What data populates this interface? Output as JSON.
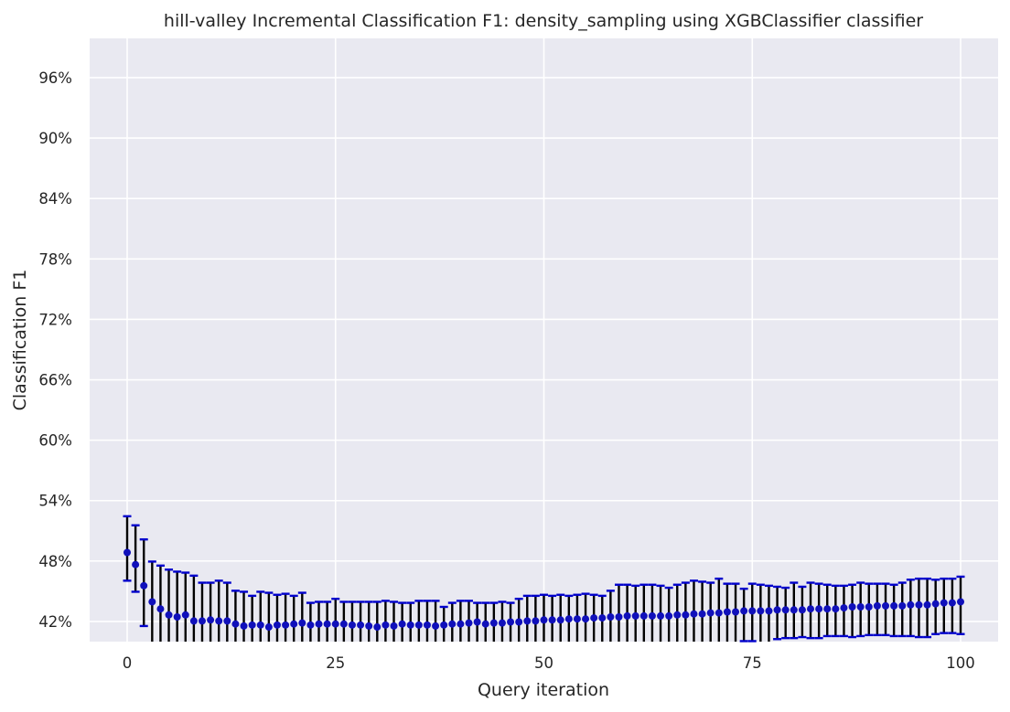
{
  "chart_data": {
    "type": "scatter",
    "title": "hill-valley Incremental Classification F1: density_sampling using XGBClassifier classifier",
    "xlabel": "Query iteration",
    "ylabel": "Classification F1",
    "xlim": [
      -4.5,
      104.5
    ],
    "ylim": [
      0.4,
      0.999
    ],
    "xticks": [
      0,
      25,
      50,
      75,
      100
    ],
    "xtick_labels": [
      "0",
      "25",
      "50",
      "75",
      "100"
    ],
    "yticks": [
      0.42,
      0.48,
      0.54,
      0.6,
      0.66,
      0.72,
      0.78,
      0.84,
      0.9,
      0.96
    ],
    "ytick_labels": [
      "42%",
      "48%",
      "54%",
      "60%",
      "66%",
      "72%",
      "78%",
      "84%",
      "90%",
      "96%"
    ],
    "grid": true,
    "background": "#e9e9f1",
    "point_color": "#1010bb",
    "errorbar_color": "#000000",
    "cap_color": "#0000cc",
    "x": [
      0,
      1,
      2,
      3,
      4,
      5,
      6,
      7,
      8,
      9,
      10,
      11,
      12,
      13,
      14,
      15,
      16,
      17,
      18,
      19,
      20,
      21,
      22,
      23,
      24,
      25,
      26,
      27,
      28,
      29,
      30,
      31,
      32,
      33,
      34,
      35,
      36,
      37,
      38,
      39,
      40,
      41,
      42,
      43,
      44,
      45,
      46,
      47,
      48,
      49,
      50,
      51,
      52,
      53,
      54,
      55,
      56,
      57,
      58,
      59,
      60,
      61,
      62,
      63,
      64,
      65,
      66,
      67,
      68,
      69,
      70,
      71,
      72,
      73,
      74,
      75,
      76,
      77,
      78,
      79,
      80,
      81,
      82,
      83,
      84,
      85,
      86,
      87,
      88,
      89,
      90,
      91,
      92,
      93,
      94,
      95,
      96,
      97,
      98,
      99,
      100
    ],
    "y": [
      0.4885,
      0.4765,
      0.4555,
      0.4395,
      0.4325,
      0.4265,
      0.4245,
      0.4265,
      0.4205,
      0.4205,
      0.4215,
      0.4205,
      0.4205,
      0.4175,
      0.4155,
      0.4165,
      0.4165,
      0.4145,
      0.4165,
      0.4165,
      0.4175,
      0.4185,
      0.4165,
      0.4175,
      0.4175,
      0.4175,
      0.4175,
      0.4165,
      0.4165,
      0.4155,
      0.4145,
      0.4165,
      0.4155,
      0.4175,
      0.4165,
      0.4165,
      0.4165,
      0.4155,
      0.4165,
      0.4175,
      0.4175,
      0.4185,
      0.4195,
      0.4175,
      0.4185,
      0.4185,
      0.4195,
      0.4195,
      0.4205,
      0.4205,
      0.4215,
      0.4215,
      0.4215,
      0.4225,
      0.4225,
      0.4225,
      0.4235,
      0.4235,
      0.4245,
      0.4245,
      0.4255,
      0.4255,
      0.4255,
      0.4255,
      0.4255,
      0.4255,
      0.4265,
      0.4265,
      0.4275,
      0.4275,
      0.4285,
      0.4285,
      0.4295,
      0.4295,
      0.4305,
      0.4305,
      0.4305,
      0.4305,
      0.4315,
      0.4315,
      0.4315,
      0.4315,
      0.4325,
      0.4325,
      0.4325,
      0.4325,
      0.4335,
      0.4345,
      0.4345,
      0.4345,
      0.4355,
      0.4355,
      0.4355,
      0.4355,
      0.4365,
      0.4365,
      0.4365,
      0.4375,
      0.4385,
      0.4385,
      0.4395
    ],
    "yerr_upper": [
      0.5245,
      0.5155,
      0.5015,
      0.4795,
      0.4755,
      0.4715,
      0.4695,
      0.4685,
      0.4655,
      0.4585,
      0.4585,
      0.4605,
      0.4585,
      0.4505,
      0.4495,
      0.4455,
      0.4495,
      0.4485,
      0.4465,
      0.4475,
      0.4455,
      0.4485,
      0.4385,
      0.4395,
      0.4395,
      0.4425,
      0.4395,
      0.4395,
      0.4395,
      0.4395,
      0.4395,
      0.4405,
      0.4395,
      0.4385,
      0.4385,
      0.4405,
      0.4405,
      0.4405,
      0.4345,
      0.4385,
      0.4405,
      0.4405,
      0.4385,
      0.4385,
      0.4385,
      0.4395,
      0.4385,
      0.4425,
      0.4455,
      0.4455,
      0.4465,
      0.4455,
      0.4465,
      0.4455,
      0.4465,
      0.4475,
      0.4465,
      0.4455,
      0.4505,
      0.4565,
      0.4565,
      0.4555,
      0.4565,
      0.4565,
      0.4555,
      0.4535,
      0.4565,
      0.4585,
      0.4605,
      0.4595,
      0.4585,
      0.4625,
      0.4575,
      0.4575,
      0.4525,
      0.4575,
      0.4565,
      0.4555,
      0.4545,
      0.4535,
      0.4585,
      0.4545,
      0.4585,
      0.4575,
      0.4565,
      0.4555,
      0.4555,
      0.4565,
      0.4585,
      0.4575,
      0.4575,
      0.4575,
      0.4565,
      0.4585,
      0.4615,
      0.4625,
      0.4625,
      0.4615,
      0.4625,
      0.4625,
      0.4645
    ],
    "yerr_lower": [
      0.4605,
      0.4495,
      0.4155,
      0.4,
      0.4,
      0.4,
      0.4,
      0.4,
      0.4,
      0.4,
      0.4,
      0.4,
      0.4,
      0.4,
      0.4,
      0.4,
      0.4,
      0.4,
      0.4,
      0.4,
      0.4,
      0.4,
      0.4,
      0.4,
      0.4,
      0.4,
      0.4,
      0.4,
      0.4,
      0.4,
      0.4,
      0.4,
      0.4,
      0.4,
      0.4,
      0.4,
      0.4,
      0.4,
      0.4,
      0.4,
      0.4,
      0.4,
      0.4,
      0.4,
      0.4,
      0.4,
      0.4,
      0.4,
      0.4,
      0.4,
      0.4,
      0.4,
      0.4,
      0.4,
      0.4,
      0.4,
      0.4,
      0.4,
      0.4,
      0.4,
      0.4,
      0.4,
      0.4,
      0.4,
      0.4,
      0.4,
      0.4,
      0.4,
      0.4,
      0.4,
      0.4,
      0.4,
      0.4,
      0.4,
      0.4005,
      0.4005,
      0.4,
      0.4,
      0.4025,
      0.4035,
      0.4035,
      0.4045,
      0.4035,
      0.4035,
      0.4055,
      0.4055,
      0.4055,
      0.4045,
      0.4055,
      0.4065,
      0.4065,
      0.4065,
      0.4055,
      0.4055,
      0.4055,
      0.4045,
      0.4045,
      0.4075,
      0.4085,
      0.4085,
      0.4075
    ]
  }
}
